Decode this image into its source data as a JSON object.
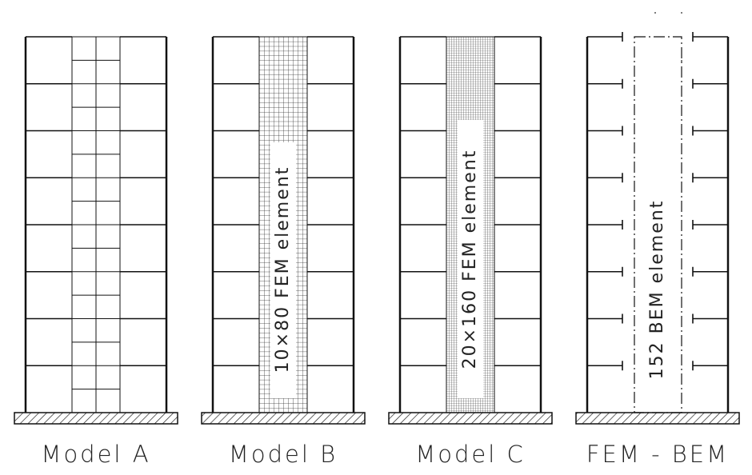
{
  "models": [
    {
      "label": "Model A"
    },
    {
      "label": "Model B",
      "element": "10×80 FEM element"
    },
    {
      "label": "Model C",
      "element": "20×160 FEM element"
    },
    {
      "label": "FEM - BEM",
      "element": "152 BEM element"
    }
  ]
}
